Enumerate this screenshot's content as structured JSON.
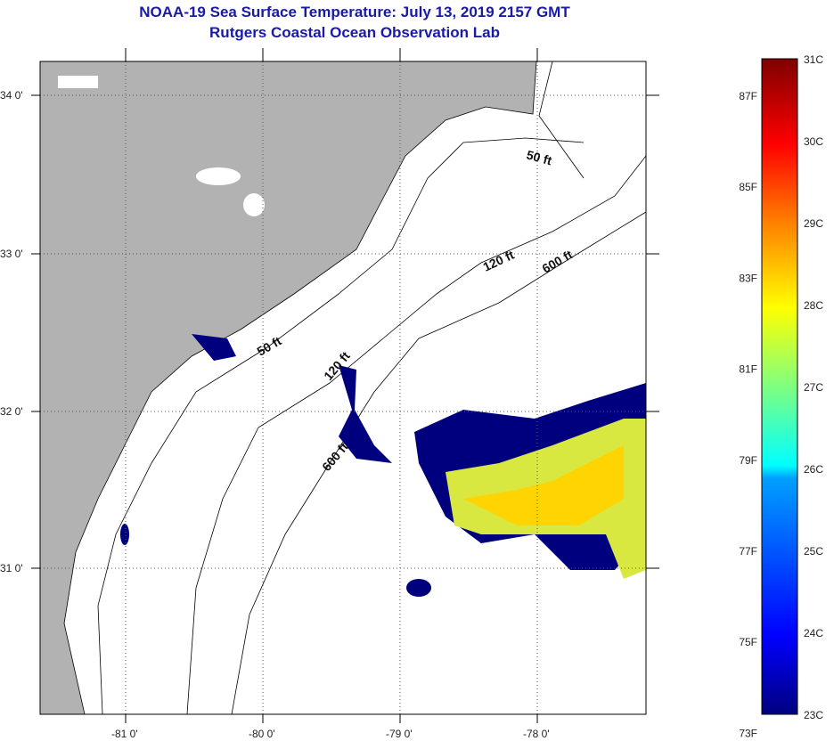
{
  "title": "NOAA-19 Sea Surface Temperature:  July 13, 2019 2157 GMT",
  "subtitle": "Rutgers Coastal Ocean Observation Lab",
  "map": {
    "lat_labels": [
      "34 0'",
      "33 0'",
      "32 0'",
      "31 0'"
    ],
    "lon_labels": [
      "-81 0'",
      "-80 0'",
      "-79 0'",
      "-78 0'"
    ],
    "contour_labels": [
      "50 ft",
      "120 ft",
      "600 ft",
      "50 ft",
      "120 ft",
      "600 ft"
    ]
  },
  "colorbar": {
    "fahrenheit_labels": [
      "87F",
      "85F",
      "83F",
      "81F",
      "79F",
      "77F",
      "75F",
      "73F"
    ],
    "celsius_labels": [
      "31C",
      "30C",
      "29C",
      "28C",
      "27C",
      "26C",
      "25C",
      "24C",
      "23C"
    ],
    "range_c": [
      23,
      31
    ]
  },
  "colors": {
    "land": "#b2b2b2",
    "title": "#1a1aa8",
    "cold": "#00007f",
    "warm": "#7f0000"
  }
}
